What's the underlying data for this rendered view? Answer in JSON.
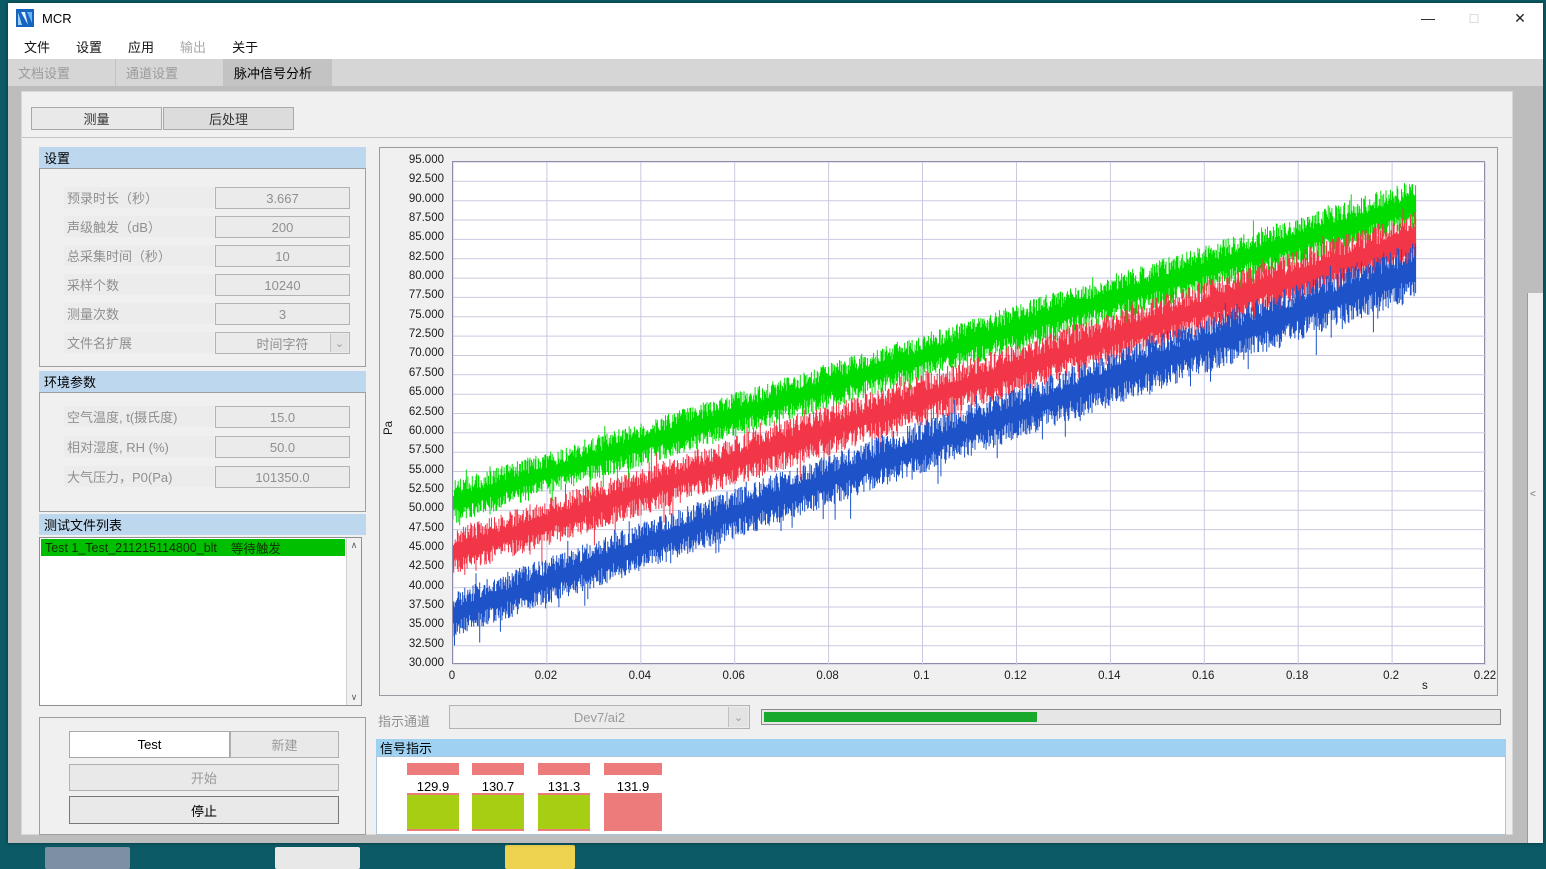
{
  "window": {
    "title": "MCR"
  },
  "titlebar": {
    "minimize_icon": "—",
    "maximize_icon": "□",
    "close_icon": "✕"
  },
  "menu": {
    "items": [
      {
        "label": "文件",
        "enabled": true
      },
      {
        "label": "设置",
        "enabled": true
      },
      {
        "label": "应用",
        "enabled": true
      },
      {
        "label": "输出",
        "enabled": false
      },
      {
        "label": "关于",
        "enabled": true
      }
    ]
  },
  "tabs": [
    {
      "label": "文档设置",
      "active": false
    },
    {
      "label": "通道设置",
      "active": false
    },
    {
      "label": "脉冲信号分析",
      "active": true
    }
  ],
  "subtabs": {
    "measure": "测量",
    "post": "后处理"
  },
  "settings": {
    "header": "设置",
    "rows": [
      {
        "label": "预录时长（秒）",
        "value": "3.667"
      },
      {
        "label": "声级触发（dB）",
        "value": "200"
      },
      {
        "label": "总采集时间（秒）",
        "value": "10"
      },
      {
        "label": "采样个数",
        "value": "10240"
      },
      {
        "label": "测量次数",
        "value": "3"
      },
      {
        "label": "文件名扩展",
        "value": "时间字符",
        "dropdown": true
      }
    ]
  },
  "environment": {
    "header": "环境参数",
    "rows": [
      {
        "label": "空气温度, t(摄氏度)",
        "value": "15.0"
      },
      {
        "label": "相对湿度, RH (%)",
        "value": "50.0"
      },
      {
        "label": "大气压力，P0(Pa)",
        "value": "101350.0"
      }
    ]
  },
  "file_list": {
    "header": "测试文件列表",
    "items": [
      {
        "name": "Test 1_Test_211215114800_blt",
        "status": "等待触发"
      }
    ]
  },
  "controls": {
    "test_value": "Test",
    "new_label": "新建",
    "start_label": "开始",
    "stop_label": "停止"
  },
  "indicator": {
    "label": "指示通道",
    "channel": "Dev7/ai2",
    "progress_percent": 37
  },
  "signal": {
    "header": "信号指示",
    "top_bar_color": "#ee7b7b",
    "colors": {
      "ok": "#a6ce13",
      "alert": "#ee7b7b"
    },
    "blocks": [
      {
        "value": "129.9",
        "state": "ok"
      },
      {
        "value": "130.7",
        "state": "ok"
      },
      {
        "value": "131.3",
        "state": "ok"
      },
      {
        "value": "131.9",
        "state": "alert"
      }
    ]
  },
  "chart_data": {
    "type": "line",
    "title": "",
    "xlabel": "s",
    "ylabel": "Pa",
    "xlim": [
      0,
      0.22
    ],
    "ylim": [
      30,
      95
    ],
    "x_tick_step": 0.02,
    "y_tick_step": 2.5,
    "grid": true,
    "x_data_end": 0.205,
    "series": [
      {
        "name": "channel-green",
        "color": "#00dc00",
        "x": [
          0,
          0.05,
          0.1,
          0.15,
          0.205
        ],
        "center": [
          51.0,
          60.4,
          69.8,
          79.2,
          89.5
        ],
        "half_width_start": 2.8,
        "half_width_end": 3.2
      },
      {
        "name": "channel-red",
        "color": "#f23648",
        "x": [
          0,
          0.05,
          0.1,
          0.15,
          0.205
        ],
        "center": [
          44.5,
          54.4,
          64.3,
          74.2,
          85.0
        ],
        "half_width_start": 3.0,
        "half_width_end": 3.6
      },
      {
        "name": "channel-blue",
        "color": "#1d52c8",
        "x": [
          0,
          0.05,
          0.1,
          0.15,
          0.205
        ],
        "center": [
          36.5,
          47.4,
          58.2,
          69.1,
          81.0
        ],
        "half_width_start": 3.0,
        "half_width_end": 3.8
      }
    ]
  }
}
